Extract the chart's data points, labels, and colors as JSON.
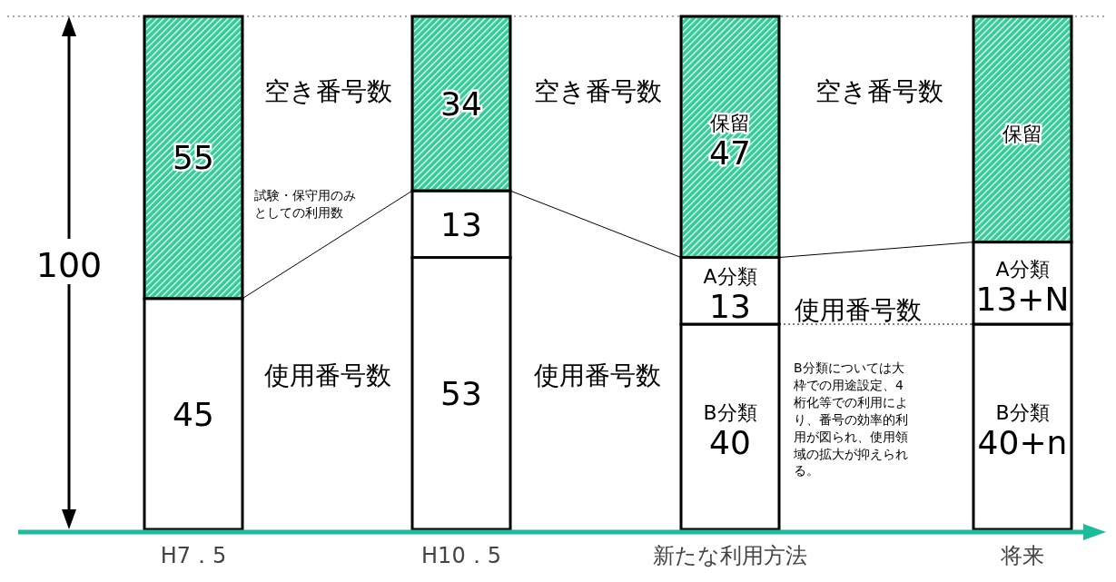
{
  "chart_data": {
    "type": "bar",
    "stacked": true,
    "categories": [
      "H7．5",
      "H10．5",
      "新たな利用方法",
      "将来"
    ],
    "ylabel": "100",
    "ylim": [
      0,
      100
    ],
    "tick_labels": "x",
    "series": [
      {
        "color": "#ffffff",
        "values": [
          45,
          53,
          40,
          40
        ],
        "value_labels": [
          "45",
          "53",
          "B分類 40",
          "B分類 40+n"
        ]
      },
      {
        "color": "#ffffff",
        "values": [
          0,
          13,
          13,
          16
        ],
        "value_labels": [
          null,
          "13",
          "A分類 13",
          "A分類 13+N"
        ]
      },
      {
        "color": "#33cc99",
        "values": [
          55,
          34,
          47,
          44
        ],
        "value_labels": [
          "55",
          "34",
          "保留 47",
          "保留"
        ]
      }
    ],
    "ref_lines": [
      {
        "axis": "y",
        "value": 100,
        "line_style": "dotted",
        "color": "#888888"
      }
    ],
    "annotations": [
      "空き番号数",
      "空き番号数",
      "空き番号数",
      "使用番号数",
      "使用番号数",
      "使用番号数",
      "試験・保守用のみとしての利用数",
      "B分類については大枠での用途設定、4桁化等での利用により、番号の効率的利用が図られ、使用領域の拡大が抑えられる。"
    ]
  }
}
